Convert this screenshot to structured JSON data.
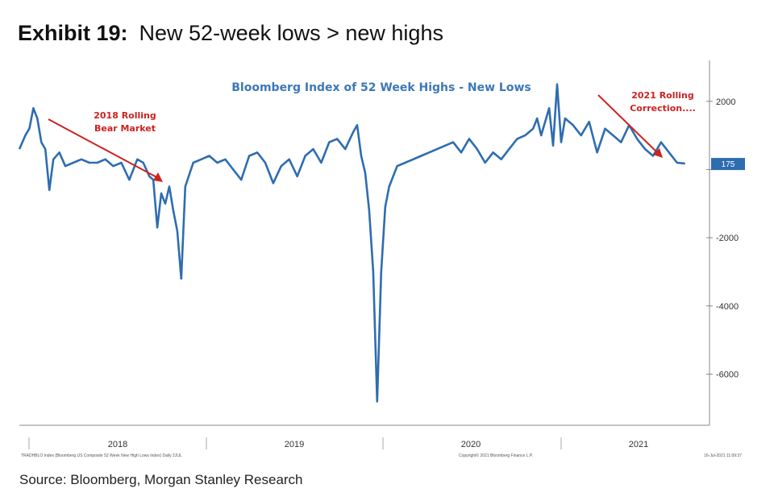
{
  "exhibit": {
    "number": "Exhibit 19:",
    "title": "New 52-week lows > new highs"
  },
  "source": "Source: Bloomberg, Morgan Stanley Research",
  "chart_data": {
    "type": "line",
    "title": "Bloomberg Index of 52 Week Highs - New Lows",
    "xlabel": "",
    "ylabel": "",
    "ylim": [
      -7500,
      3200
    ],
    "y_ticks": [
      2000,
      0,
      -2000,
      -4000,
      -6000
    ],
    "y_tick_labels": [
      "2000",
      "",
      "-2000",
      "-4000",
      "-6000"
    ],
    "x_years": [
      "2018",
      "2019",
      "2020",
      "2021"
    ],
    "last_value": {
      "value": 175,
      "label": "175"
    },
    "series": [
      {
        "values": [
          [
            2017.93,
            600
          ],
          [
            2017.96,
            1000
          ],
          [
            2017.98,
            1200
          ],
          [
            2018.0,
            1800
          ],
          [
            2018.02,
            1500
          ],
          [
            2018.04,
            800
          ],
          [
            2018.06,
            600
          ],
          [
            2018.08,
            -600
          ],
          [
            2018.1,
            300
          ],
          [
            2018.13,
            500
          ],
          [
            2018.16,
            100
          ],
          [
            2018.2,
            200
          ],
          [
            2018.24,
            300
          ],
          [
            2018.28,
            200
          ],
          [
            2018.32,
            200
          ],
          [
            2018.36,
            300
          ],
          [
            2018.4,
            100
          ],
          [
            2018.44,
            200
          ],
          [
            2018.48,
            -300
          ],
          [
            2018.52,
            300
          ],
          [
            2018.55,
            200
          ],
          [
            2018.58,
            -200
          ],
          [
            2018.6,
            -300
          ],
          [
            2018.62,
            -1700
          ],
          [
            2018.64,
            -700
          ],
          [
            2018.66,
            -1000
          ],
          [
            2018.68,
            -500
          ],
          [
            2018.7,
            -1200
          ],
          [
            2018.72,
            -1800
          ],
          [
            2018.74,
            -3200
          ],
          [
            2018.76,
            -500
          ],
          [
            2018.8,
            200
          ],
          [
            2018.84,
            300
          ],
          [
            2018.88,
            400
          ],
          [
            2018.92,
            200
          ],
          [
            2018.96,
            300
          ],
          [
            2019.0,
            0
          ],
          [
            2019.04,
            -300
          ],
          [
            2019.08,
            400
          ],
          [
            2019.12,
            500
          ],
          [
            2019.16,
            200
          ],
          [
            2019.2,
            -400
          ],
          [
            2019.24,
            100
          ],
          [
            2019.28,
            300
          ],
          [
            2019.32,
            -200
          ],
          [
            2019.36,
            400
          ],
          [
            2019.4,
            600
          ],
          [
            2019.44,
            200
          ],
          [
            2019.48,
            800
          ],
          [
            2019.52,
            900
          ],
          [
            2019.56,
            600
          ],
          [
            2019.6,
            1100
          ],
          [
            2019.62,
            1300
          ],
          [
            2019.64,
            400
          ],
          [
            2019.66,
            -100
          ],
          [
            2019.68,
            -1200
          ],
          [
            2019.7,
            -3000
          ],
          [
            2019.72,
            -6800
          ],
          [
            2019.74,
            -3000
          ],
          [
            2019.76,
            -1100
          ],
          [
            2019.78,
            -500
          ],
          [
            2019.82,
            100
          ],
          [
            2019.86,
            200
          ],
          [
            2019.9,
            300
          ],
          [
            2019.94,
            400
          ],
          [
            2019.98,
            500
          ],
          [
            2020.02,
            600
          ],
          [
            2020.06,
            700
          ],
          [
            2020.1,
            800
          ],
          [
            2020.14,
            500
          ],
          [
            2020.18,
            900
          ],
          [
            2020.22,
            600
          ],
          [
            2020.26,
            200
          ],
          [
            2020.3,
            500
          ],
          [
            2020.34,
            300
          ],
          [
            2020.38,
            600
          ],
          [
            2020.42,
            900
          ],
          [
            2020.46,
            1000
          ],
          [
            2020.5,
            1200
          ],
          [
            2020.52,
            1500
          ],
          [
            2020.54,
            1000
          ],
          [
            2020.58,
            1800
          ],
          [
            2020.6,
            700
          ],
          [
            2020.62,
            2500
          ],
          [
            2020.64,
            800
          ],
          [
            2020.66,
            1500
          ],
          [
            2020.7,
            1300
          ],
          [
            2020.74,
            1000
          ],
          [
            2020.78,
            1400
          ],
          [
            2020.82,
            500
          ],
          [
            2020.86,
            1200
          ],
          [
            2020.9,
            1000
          ],
          [
            2020.94,
            800
          ],
          [
            2020.98,
            1300
          ],
          [
            2021.02,
            900
          ],
          [
            2021.06,
            600
          ],
          [
            2021.1,
            400
          ],
          [
            2021.14,
            800
          ],
          [
            2021.18,
            500
          ],
          [
            2021.22,
            200
          ],
          [
            2021.26,
            175
          ]
        ]
      }
    ],
    "annotations": [
      {
        "lines": [
          "2018 Rolling",
          "Bear Market"
        ],
        "color": "#cc2222"
      },
      {
        "lines": [
          "2021 Rolling",
          "Correction...."
        ],
        "color": "#cc2222"
      }
    ],
    "footnote_left": "TRADHBLO Index (Bloomberg US Composite 52 Week New High Lows Index)  Daily 2JUL",
    "footnote_center": "Copyright© 2021 Bloomberg Finance L.P.",
    "footnote_right": "16-Jul-2021 11:09:37",
    "colors": {
      "line": "#2e6db0",
      "annotation": "#cc2222",
      "title": "#3c78b8",
      "axis": "#888888"
    }
  }
}
